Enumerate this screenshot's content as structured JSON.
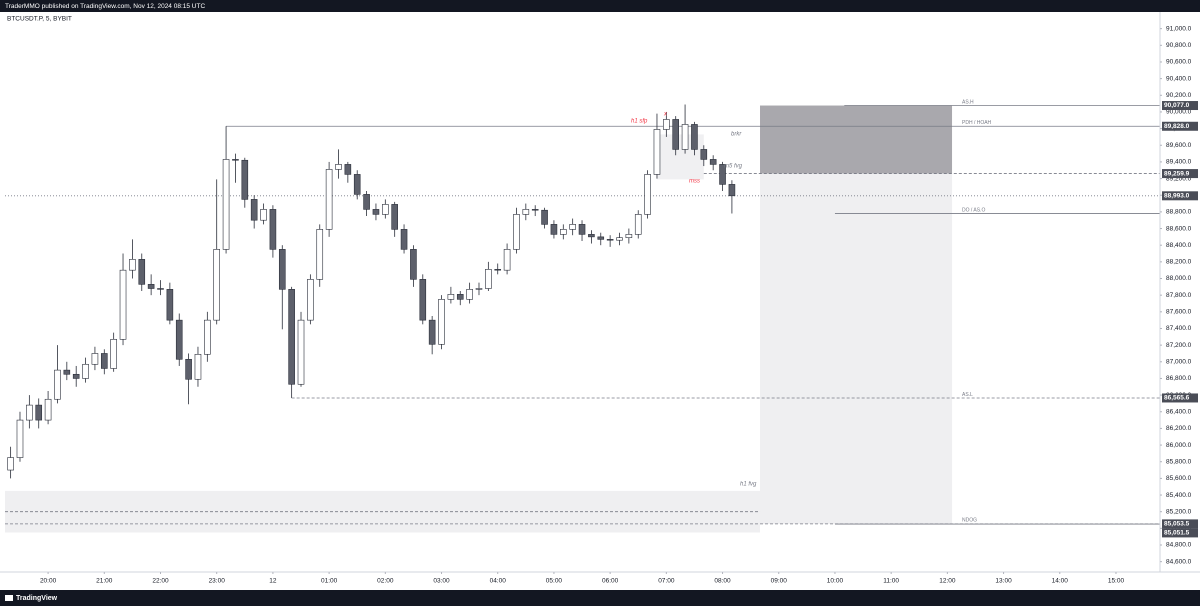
{
  "header": {
    "text": "TraderMMO published on TradingView.com, Nov 12, 2024 08:15 UTC"
  },
  "footer": {
    "text": "TradingView"
  },
  "chart_data": {
    "type": "candlestick",
    "title": "BTCUSDT.P, 5, BYBIT",
    "x": [
      "19:20",
      "19:30",
      "19:40",
      "19:50",
      "20:00",
      "20:10",
      "20:20",
      "20:30",
      "20:40",
      "20:50",
      "21:00",
      "21:10",
      "21:20",
      "21:30",
      "21:40",
      "21:50",
      "22:00",
      "22:10",
      "22:20",
      "22:30",
      "22:40",
      "22:50",
      "23:00",
      "23:10",
      "23:20",
      "23:30",
      "23:40",
      "23:50",
      "00:00",
      "00:10",
      "00:20",
      "00:30",
      "00:40",
      "00:50",
      "01:00",
      "01:10",
      "01:20",
      "01:30",
      "01:40",
      "01:50",
      "02:00",
      "02:10",
      "02:20",
      "02:30",
      "02:40",
      "02:50",
      "03:00",
      "03:10",
      "03:20",
      "03:30",
      "03:40",
      "03:50",
      "04:00",
      "04:10",
      "04:20",
      "04:30",
      "04:40",
      "04:50",
      "05:00",
      "05:10",
      "05:20",
      "05:30",
      "05:40",
      "05:50",
      "06:00",
      "06:10",
      "06:20",
      "06:30",
      "06:40",
      "06:50",
      "07:00",
      "07:10",
      "07:20",
      "07:30",
      "07:40",
      "07:50",
      "08:00",
      "08:10"
    ],
    "open": [
      85700,
      85850,
      86300,
      86480,
      86300,
      86550,
      86900,
      86850,
      86800,
      86970,
      87100,
      86920,
      87270,
      88100,
      88230,
      87930,
      87880,
      87870,
      87500,
      87030,
      86790,
      87090,
      87500,
      88350,
      89430,
      89420,
      88950,
      88700,
      88830,
      88350,
      87870,
      86730,
      87500,
      87990,
      88590,
      89310,
      89370,
      89250,
      89010,
      88830,
      88770,
      88890,
      88590,
      88350,
      87990,
      87500,
      87210,
      87750,
      87810,
      87750,
      87870,
      87880,
      88110,
      88100,
      88350,
      88770,
      88830,
      88820,
      88650,
      88530,
      88590,
      88650,
      88530,
      88500,
      88470,
      88460,
      88490,
      88530,
      88770,
      89250,
      89790,
      89910,
      89550,
      89850,
      89550,
      89430,
      89370,
      89130
    ],
    "high": [
      85980,
      86400,
      86600,
      86560,
      86650,
      87200,
      87000,
      86950,
      87050,
      87180,
      87150,
      87350,
      88300,
      88470,
      88300,
      88050,
      87980,
      87950,
      87580,
      87100,
      87180,
      87600,
      89190,
      89828,
      89500,
      89450,
      89000,
      88900,
      88880,
      88400,
      87900,
      87600,
      88050,
      88650,
      89400,
      89550,
      89400,
      89300,
      89050,
      88900,
      88950,
      88920,
      88650,
      88400,
      88050,
      87550,
      87800,
      87900,
      87850,
      87950,
      87950,
      88200,
      88180,
      88420,
      88850,
      88900,
      88880,
      88850,
      88700,
      88650,
      88720,
      88700,
      88580,
      88550,
      88520,
      88550,
      88600,
      88820,
      89300,
      89980,
      90000,
      89950,
      90090,
      89880,
      89600,
      89480,
      89400,
      89180
    ],
    "low": [
      85600,
      85800,
      86200,
      86200,
      86250,
      86500,
      86780,
      86700,
      86750,
      86900,
      86850,
      86880,
      87200,
      88000,
      87850,
      87800,
      87800,
      87450,
      86950,
      86490,
      86700,
      87000,
      87450,
      88300,
      89150,
      88850,
      88600,
      88650,
      88250,
      87390,
      86565.6,
      86700,
      87450,
      87900,
      88500,
      89200,
      89150,
      88950,
      88750,
      88700,
      88720,
      88500,
      88300,
      87900,
      87450,
      87090,
      87150,
      87700,
      87680,
      87700,
      87800,
      87850,
      88050,
      88050,
      88300,
      88700,
      88750,
      88600,
      88480,
      88470,
      88520,
      88450,
      88420,
      88400,
      88380,
      88400,
      88420,
      88480,
      88720,
      89200,
      89700,
      89480,
      89500,
      89480,
      89350,
      89300,
      89050,
      88780
    ],
    "close": [
      85850,
      86300,
      86480,
      86300,
      86550,
      86900,
      86850,
      86800,
      86970,
      87100,
      86920,
      87270,
      88100,
      88230,
      87930,
      87880,
      87870,
      87500,
      87030,
      86790,
      87090,
      87500,
      88350,
      89430,
      89420,
      88950,
      88700,
      88830,
      88350,
      87870,
      86730,
      87500,
      87990,
      88590,
      89310,
      89370,
      89250,
      89010,
      88830,
      88770,
      88890,
      88590,
      88350,
      87990,
      87500,
      87210,
      87750,
      87810,
      87750,
      87870,
      87880,
      88110,
      88100,
      88350,
      88770,
      88830,
      88820,
      88650,
      88530,
      88590,
      88650,
      88530,
      88500,
      88470,
      88460,
      88490,
      88530,
      88770,
      89250,
      89790,
      89910,
      89550,
      89850,
      89550,
      89430,
      89370,
      89130,
      88993
    ],
    "up_color": "#ffffff",
    "down_color": "#5d606b",
    "border_color": "#2a2e39",
    "xlim": [
      "19:14",
      "15:47"
    ],
    "xticks": [
      "20:00",
      "21:00",
      "22:00",
      "23:00",
      {
        "value": "00:00",
        "label": "12"
      },
      "01:00",
      "02:00",
      "03:00",
      "04:00",
      "05:00",
      "06:00",
      "07:00",
      "08:00",
      "09:00",
      "10:00",
      "11:00",
      "12:00",
      "13:00",
      "14:00",
      "15:00"
    ],
    "ylim": [
      84500,
      91200
    ],
    "yticks": [
      {
        "value": 84600,
        "label": "84,600.0"
      },
      {
        "value": 84800,
        "label": "84,800.0"
      },
      {
        "value": 85000,
        "label": "85,000.0"
      },
      {
        "value": 85200,
        "label": "85,200.0"
      },
      {
        "value": 85400,
        "label": "85,400.0"
      },
      {
        "value": 85600,
        "label": "85,600.0"
      },
      {
        "value": 85800,
        "label": "85,800.0"
      },
      {
        "value": 86000,
        "label": "86,000.0"
      },
      {
        "value": 86200,
        "label": "86,200.0"
      },
      {
        "value": 86400,
        "label": "86,400.0"
      },
      {
        "value": 86600,
        "label": "86,600.0"
      },
      {
        "value": 86800,
        "label": "86,800.0"
      },
      {
        "value": 87000,
        "label": "87,000.0"
      },
      {
        "value": 87200,
        "label": "87,200.0"
      },
      {
        "value": 87400,
        "label": "87,400.0"
      },
      {
        "value": 87600,
        "label": "87,600.0"
      },
      {
        "value": 87800,
        "label": "87,800.0"
      },
      {
        "value": 88000,
        "label": "88,000.0"
      },
      {
        "value": 88200,
        "label": "88,200.0"
      },
      {
        "value": 88400,
        "label": "88,400.0"
      },
      {
        "value": 88600,
        "label": "88,600.0"
      },
      {
        "value": 88800,
        "label": "88,800.0"
      },
      {
        "value": 89000,
        "label": "89,000.0"
      },
      {
        "value": 89200,
        "label": "89,200.0"
      },
      {
        "value": 89400,
        "label": "89,400.0"
      },
      {
        "value": 89600,
        "label": "89,600.0"
      },
      {
        "value": 89800,
        "label": "89,800.0"
      },
      {
        "value": 90000,
        "label": "90,000.0"
      },
      {
        "value": 90200,
        "label": "90,200.0"
      },
      {
        "value": 90400,
        "label": "90,400.0"
      },
      {
        "value": 90600,
        "label": "90,600.0"
      },
      {
        "value": 90800,
        "label": "90,800.0"
      },
      {
        "value": 91000,
        "label": "91,000.0"
      }
    ],
    "grid": false,
    "zones": [
      {
        "from": "08:40",
        "to": "12:05",
        "top": 90077,
        "bottom": 89259.9,
        "color": "#a9a8ad"
      },
      {
        "from": "08:40",
        "to": "12:05",
        "top": 89259.9,
        "bottom": 85053.5,
        "color": "#efeff1"
      },
      {
        "from": "19:14",
        "to": "08:40",
        "top": 85450,
        "bottom": 84950,
        "color": "#efeff1"
      },
      {
        "from": "06:50",
        "to": "07:40",
        "top": 89730,
        "bottom": 89190,
        "color": "#f0f0f2"
      }
    ],
    "levels": [
      {
        "name": "AS.H",
        "value": 90077,
        "badge": "90,077.0",
        "from": "10:10",
        "to": "15:47",
        "style": "solid"
      },
      {
        "name": "PDH / HOAH",
        "value": 89828,
        "badge": "89,828.0",
        "from": "23:10",
        "to": "15:47",
        "style": "solid"
      },
      {
        "value": 89259.9,
        "badge": "89,259.9",
        "from": "07:40",
        "to": "15:47",
        "style": "dashed"
      },
      {
        "value": 88993,
        "badge": "88,993.0",
        "from": "19:14",
        "to": "15:47",
        "style": "dotted"
      },
      {
        "name": "DO / AS.O",
        "value": 88780,
        "from": "10:00",
        "to": "15:47",
        "style": "solid"
      },
      {
        "name": "AS.L",
        "value": 86565.6,
        "badge": "86,565.6",
        "from": "00:20",
        "to": "15:47",
        "style": "dashed"
      },
      {
        "value": 85200,
        "from": "19:14",
        "to": "08:40",
        "style": "dashed"
      },
      {
        "name": "NDOG",
        "value": 85053.5,
        "badge": "85,053.5",
        "from": "19:14",
        "to": "15:47",
        "style": "dashed"
      },
      {
        "value": 85051.5,
        "badge": "85,051.5",
        "from": "10:00",
        "to": "15:47",
        "style": "solid"
      }
    ],
    "annotations": [
      {
        "text": "h1 sfp",
        "color": "#f23645"
      },
      {
        "text": "x",
        "color": "#f23645"
      },
      {
        "text": "brkr",
        "color": "#787b86"
      },
      {
        "text": "m5 fvg",
        "color": "#787b86"
      },
      {
        "text": "mss",
        "color": "#f23645"
      },
      {
        "text": "h1 fvg",
        "color": "#787b86"
      }
    ]
  }
}
